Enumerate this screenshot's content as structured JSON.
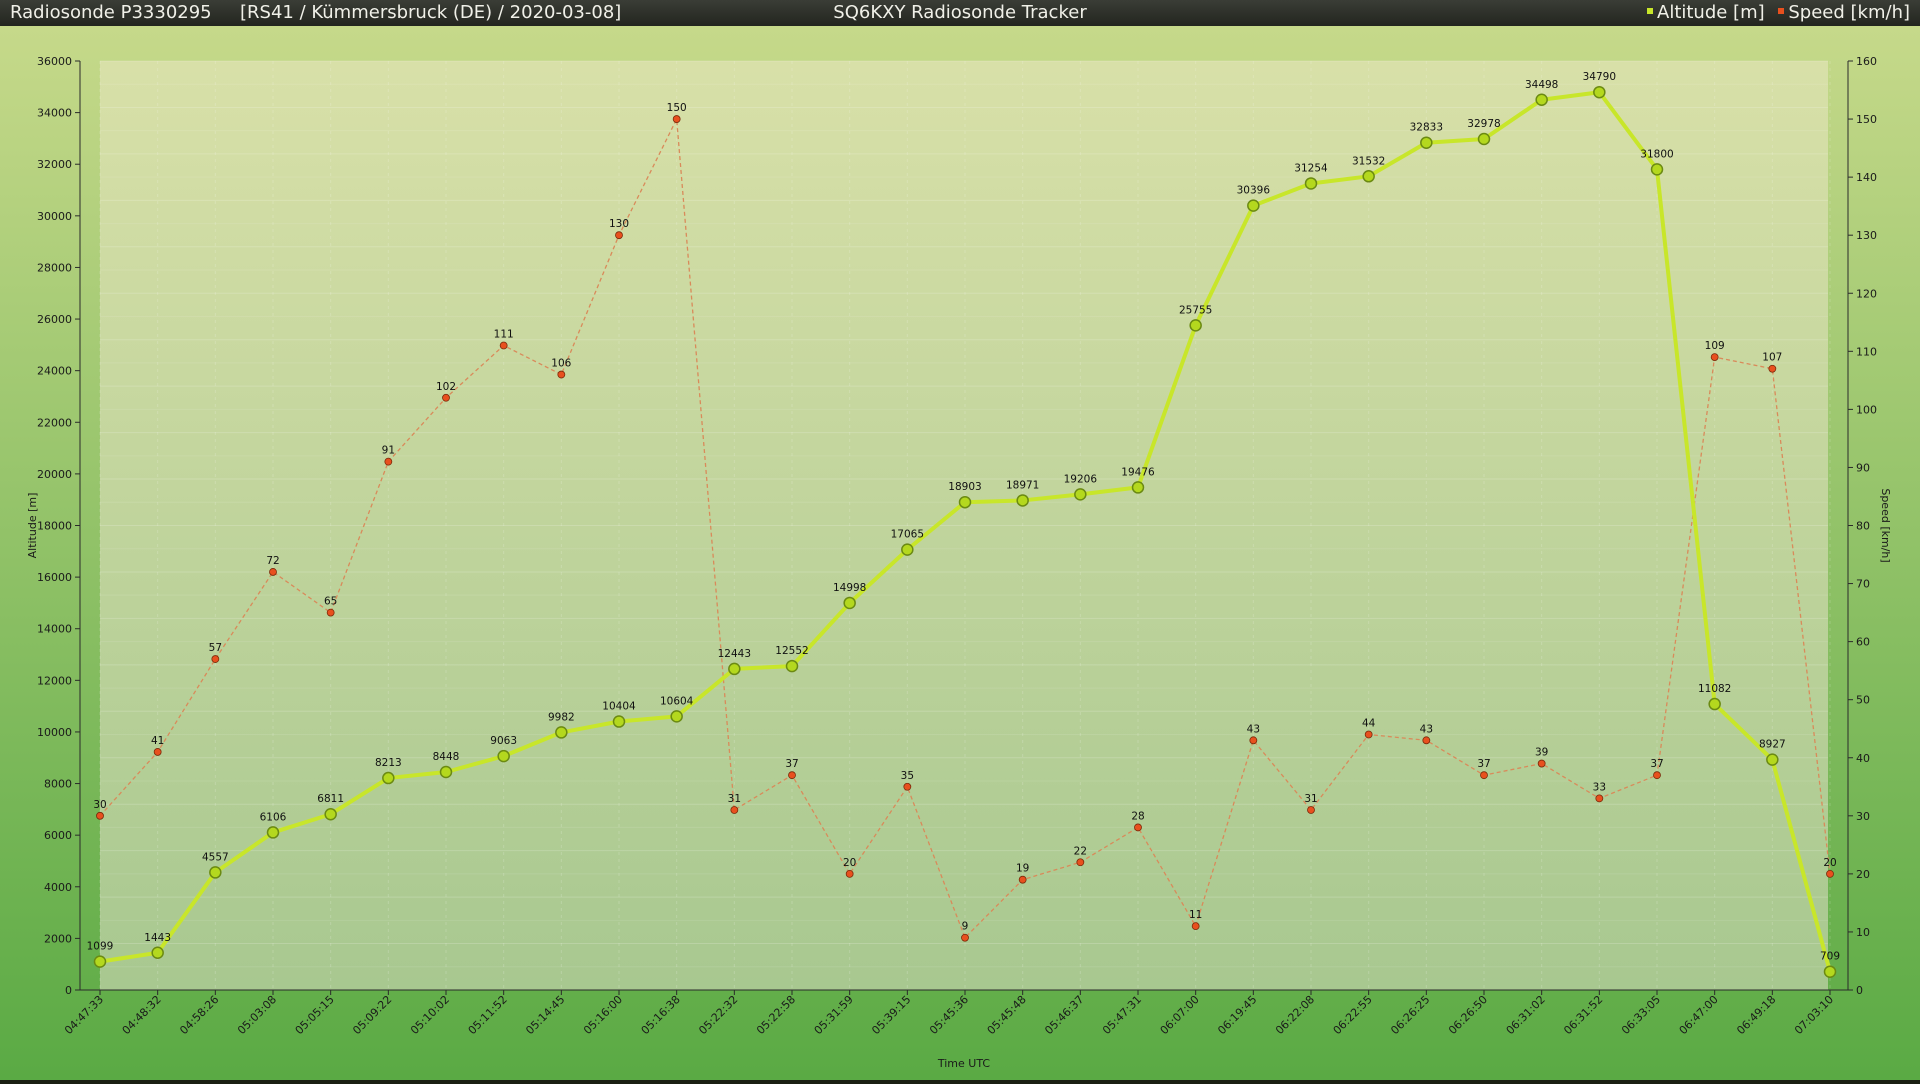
{
  "header": {
    "sonde": "Radiosonde P3330295",
    "info": "[RS41 / Kümmersbruck (DE) / 2020-03-08]",
    "tracker": "SQ6KXY Radiosonde Tracker"
  },
  "colors": {
    "altitude": "#c8e62a",
    "altitude_marker_fill": "#b4d81e",
    "altitude_marker_stroke": "#6b8a12",
    "speed": "#e8501e",
    "speed_line": "#d98a5a",
    "background_top": "#c6d98a",
    "background_bottom": "#5aaa44",
    "plot_top": "#d8e0a8",
    "plot_bottom": "#a8c890"
  },
  "chart_data": {
    "type": "line",
    "xlabel": "Time UTC",
    "ylabel_left": "Altitude [m]",
    "ylabel_right": "Speed [km/h]",
    "ylim_left": [
      0,
      36000
    ],
    "ylim_right": [
      0,
      160
    ],
    "y_ticks_left": [
      0,
      2000,
      4000,
      6000,
      8000,
      10000,
      12000,
      14000,
      16000,
      18000,
      20000,
      22000,
      24000,
      26000,
      28000,
      30000,
      32000,
      34000,
      36000
    ],
    "y_ticks_right": [
      0,
      10,
      20,
      30,
      40,
      50,
      60,
      70,
      80,
      90,
      100,
      110,
      120,
      130,
      140,
      150,
      160
    ],
    "legend_position": "top-right",
    "categories": [
      "04:47:33",
      "04:48:32",
      "04:58:26",
      "05:03:08",
      "05:05:15",
      "05:09:22",
      "05:10:02",
      "05:11:52",
      "05:14:45",
      "05:16:00",
      "05:16:38",
      "05:22:32",
      "05:22:58",
      "05:31:59",
      "05:39:15",
      "05:45:36",
      "05:45:48",
      "05:46:37",
      "05:47:31",
      "06:07:00",
      "06:19:45",
      "06:22:08",
      "06:22:55",
      "06:26:25",
      "06:26:50",
      "06:31:02",
      "06:31:52",
      "06:33:05",
      "06:47:00",
      "06:49:18",
      "07:03:10"
    ],
    "series": [
      {
        "name": "Altitude [m]",
        "axis": "left",
        "values": [
          1099,
          1443,
          4557,
          6106,
          6811,
          8213,
          8448,
          9063,
          9982,
          10404,
          10604,
          12443,
          12552,
          14998,
          17065,
          18903,
          18971,
          19206,
          19476,
          25755,
          30396,
          31254,
          31532,
          32833,
          32978,
          34498,
          34790,
          31800,
          11082,
          8927,
          709
        ]
      },
      {
        "name": "Speed [km/h]",
        "axis": "right",
        "values": [
          30,
          41,
          57,
          72,
          65,
          91,
          102,
          111,
          106,
          130,
          150,
          31,
          37,
          20,
          35,
          9,
          19,
          22,
          28,
          11,
          43,
          31,
          44,
          43,
          37,
          39,
          33,
          37,
          109,
          107,
          20
        ]
      }
    ]
  }
}
